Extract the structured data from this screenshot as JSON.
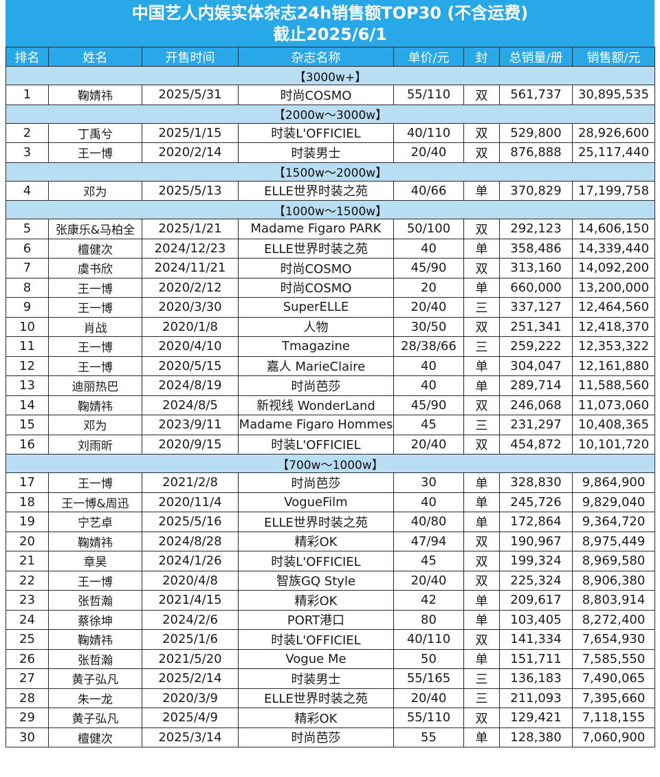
{
  "title": "中国艺人内娱实体杂志24h销售额TOP30 (不含运费)",
  "subtitle": "截止2025/6/1",
  "colors": {
    "header_bg": "#29a8e8",
    "section_bg": "#b9ddf2",
    "border": "#2a2a2a"
  },
  "headers": [
    "排名",
    "姓名",
    "开售时间",
    "杂志名称",
    "单价/元",
    "封",
    "总销量/册",
    "销售额/元"
  ],
  "groups": [
    {
      "label": "【3000w+】",
      "rows": [
        [
          "1",
          "鞠婧祎",
          "2025/5/31",
          "时尚COSMO",
          "55/110",
          "双",
          "561,737",
          "30,895,535"
        ]
      ]
    },
    {
      "label": "【2000w～3000w】",
      "rows": [
        [
          "2",
          "丁禹兮",
          "2025/1/15",
          "时装L'OFFICIEL",
          "40/110",
          "双",
          "529,800",
          "28,926,600"
        ],
        [
          "3",
          "王一博",
          "2020/2/14",
          "时装男士",
          "20/40",
          "双",
          "876,888",
          "25,117,440"
        ]
      ]
    },
    {
      "label": "【1500w～2000w】",
      "rows": [
        [
          "4",
          "邓为",
          "2025/5/13",
          "ELLE世界时装之苑",
          "40/66",
          "单",
          "370,829",
          "17,199,758"
        ]
      ]
    },
    {
      "label": "【1000w～1500w】",
      "rows": [
        [
          "5",
          "张康乐&马柏全",
          "2025/1/21",
          "Madame Figaro PARK",
          "50/100",
          "双",
          "292,123",
          "14,606,150"
        ],
        [
          "6",
          "檀健次",
          "2024/12/23",
          "ELLE世界时装之苑",
          "40",
          "单",
          "358,486",
          "14,339,440"
        ],
        [
          "7",
          "虞书欣",
          "2024/11/21",
          "时尚COSMO",
          "45/90",
          "双",
          "313,160",
          "14,092,200"
        ],
        [
          "8",
          "王一博",
          "2020/2/12",
          "时尚COSMO",
          "20",
          "单",
          "660,000",
          "13,200,000"
        ],
        [
          "9",
          "王一博",
          "2020/3/30",
          "SuperELLE",
          "20/40",
          "三",
          "337,127",
          "12,464,560"
        ],
        [
          "10",
          "肖战",
          "2020/1/8",
          "人物",
          "30/50",
          "双",
          "251,341",
          "12,418,370"
        ],
        [
          "11",
          "王一博",
          "2020/4/10",
          "Tmagazine",
          "28/38/66",
          "三",
          "259,222",
          "12,353,322"
        ],
        [
          "12",
          "王一博",
          "2020/5/15",
          "嘉人 MarieClaire",
          "40",
          "单",
          "304,047",
          "12,161,880"
        ],
        [
          "13",
          "迪丽热巴",
          "2024/8/19",
          "时尚芭莎",
          "40",
          "单",
          "289,714",
          "11,588,560"
        ],
        [
          "14",
          "鞠婧祎",
          "2024/8/5",
          "新视线 WonderLand",
          "45/90",
          "双",
          "246,068",
          "11,073,060"
        ],
        [
          "15",
          "邓为",
          "2023/9/11",
          "Madame Figaro Hommes",
          "45",
          "三",
          "231,297",
          "10,408,365"
        ],
        [
          "16",
          "刘雨昕",
          "2020/9/15",
          "时装L'OFFICIEL",
          "20/40",
          "双",
          "454,872",
          "10,101,720"
        ]
      ]
    },
    {
      "label": "【700w～1000w】",
      "rows": [
        [
          "17",
          "王一博",
          "2021/2/8",
          "时尚芭莎",
          "30",
          "单",
          "328,830",
          "9,864,900"
        ],
        [
          "18",
          "王一博&周迅",
          "2020/11/4",
          "VogueFilm",
          "40",
          "单",
          "245,726",
          "9,829,040"
        ],
        [
          "19",
          "宁艺卓",
          "2025/5/16",
          "ELLE世界时装之苑",
          "40/80",
          "单",
          "172,864",
          "9,364,720"
        ],
        [
          "20",
          "鞠婧祎",
          "2024/8/28",
          "精彩OK",
          "47/94",
          "双",
          "190,967",
          "8,975,449"
        ],
        [
          "21",
          "章昊",
          "2024/1/26",
          "时装L'OFFICIEL",
          "45",
          "双",
          "199,324",
          "8,969,580"
        ],
        [
          "22",
          "王一博",
          "2020/4/8",
          "智族GQ Style",
          "20/40",
          "双",
          "225,324",
          "8,906,380"
        ],
        [
          "23",
          "张哲瀚",
          "2021/4/15",
          "精彩OK",
          "42",
          "单",
          "209,617",
          "8,803,914"
        ],
        [
          "24",
          "蔡徐坤",
          "2024/2/6",
          "PORT港口",
          "80",
          "单",
          "103,405",
          "8,272,400"
        ],
        [
          "25",
          "鞠婧祎",
          "2025/1/6",
          "时装L'OFFICIEL",
          "40/110",
          "双",
          "141,334",
          "7,654,930"
        ],
        [
          "26",
          "张哲瀚",
          "2021/5/20",
          "Vogue Me",
          "50",
          "单",
          "151,711",
          "7,585,550"
        ],
        [
          "27",
          "黄子弘凡",
          "2025/2/14",
          "时装男士",
          "55/165",
          "三",
          "136,183",
          "7,490,065"
        ],
        [
          "28",
          "朱一龙",
          "2020/3/9",
          "ELLE世界时装之苑",
          "20/40",
          "三",
          "211,093",
          "7,395,660"
        ],
        [
          "29",
          "黄子弘凡",
          "2025/4/9",
          "精彩OK",
          "55/110",
          "双",
          "129,421",
          "7,118,155"
        ],
        [
          "30",
          "檀健次",
          "2025/3/14",
          "时尚芭莎",
          "55",
          "单",
          "128,380",
          "7,060,900"
        ]
      ]
    }
  ]
}
